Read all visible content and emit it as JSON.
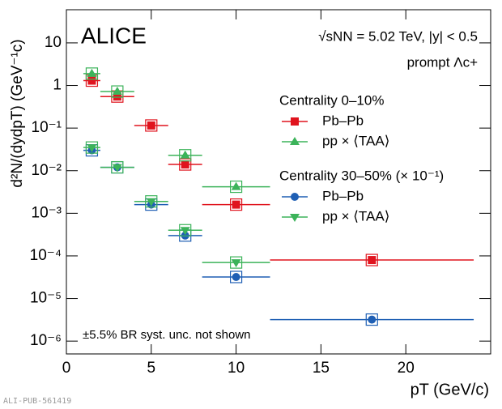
{
  "chart_data": {
    "type": "scatter",
    "x_label": "pT (GeV/c)",
    "y_label": "d²N/(dydpT) (GeV⁻¹c)",
    "annotations": [
      "ALICE",
      "√sNN = 5.02 TeV, |y| < 0.5",
      "prompt Λc+",
      "±5.5% BR syst. unc. not shown"
    ],
    "watermark": "ALI-PUB-561419",
    "legend_titles": [
      "Centrality 0–10%",
      "Centrality 30–50% (× 10⁻¹)"
    ],
    "x": [
      1.5,
      3,
      5,
      7,
      10,
      18
    ],
    "xerr": [
      0.5,
      1,
      1,
      1,
      2,
      6
    ],
    "series": [
      {
        "name": "Pb–Pb",
        "group": 0,
        "marker": "square",
        "color": "#e0141e",
        "values": [
          1.3,
          0.55,
          0.115,
          0.014,
          0.0016,
          8e-05
        ]
      },
      {
        "name": "pp × ⟨TAA⟩",
        "group": 0,
        "marker": "triangle",
        "color": "#3cb35a",
        "values": [
          1.9,
          0.72,
          null,
          0.023,
          0.0042,
          null
        ]
      },
      {
        "name": "Pb–Pb",
        "group": 1,
        "marker": "circle",
        "color": "#1f5fb4",
        "values": [
          0.03,
          0.012,
          0.0016,
          0.0003,
          3.2e-05,
          3.2e-06
        ]
      },
      {
        "name": "pp × ⟨TAA⟩",
        "group": 1,
        "marker": "triangle-down",
        "color": "#3cb35a",
        "values": [
          0.035,
          0.012,
          0.0019,
          0.0004,
          7e-05,
          null
        ]
      }
    ],
    "xlim": [
      0,
      25
    ],
    "xticks": [
      0,
      5,
      10,
      15,
      20
    ],
    "ylim": [
      5e-07,
      60
    ],
    "log_y": true,
    "yticks": [
      {
        "value": 1e-06,
        "label": "10⁻⁶"
      },
      {
        "value": 1e-05,
        "label": "10⁻⁵"
      },
      {
        "value": 0.0001,
        "label": "10⁻⁴"
      },
      {
        "value": 0.001,
        "label": "10⁻³"
      },
      {
        "value": 0.01,
        "label": "10⁻²"
      },
      {
        "value": 0.1,
        "label": "10⁻¹"
      },
      1,
      10
    ],
    "grid": false
  }
}
